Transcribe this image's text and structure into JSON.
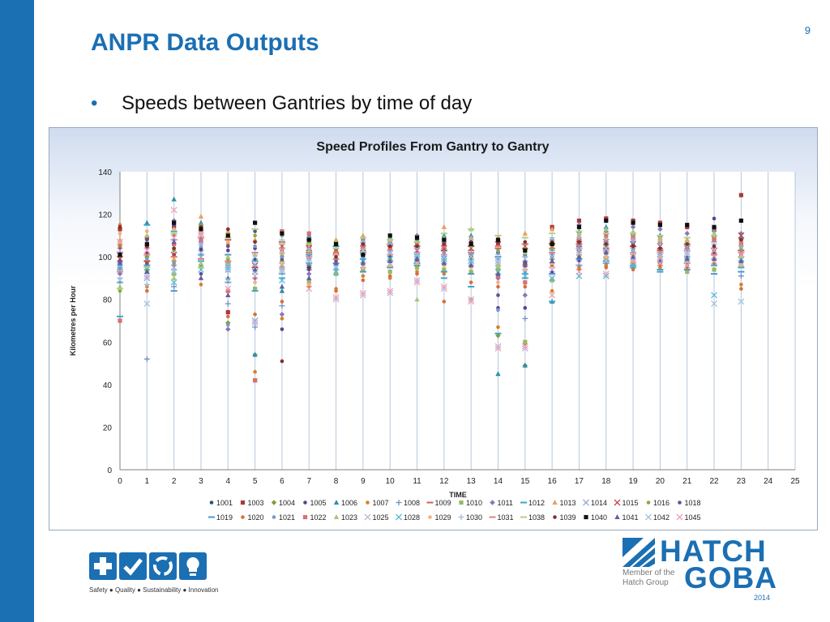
{
  "slide": {
    "page_number": "9",
    "title": "ANPR Data Outputs",
    "bullet_symbol": "•",
    "bullet": "Speeds between Gantries by time of day"
  },
  "footer": {
    "tagline": "Safety ● Quality ● Sustainability ● Innovation",
    "icons": [
      "plus-icon",
      "check-icon",
      "recycle-icon",
      "lightbulb-icon"
    ],
    "logo_line1": "HATCH",
    "logo_line2": "GOBA",
    "member_line1": "Member of the",
    "member_line2": "Hatch Group",
    "year": "2014"
  },
  "colors": {
    "brand": "#1b6fb3"
  },
  "chart_data": {
    "type": "scatter",
    "title": "Speed Profiles From Gantry to Gantry",
    "xlabel": "TIME",
    "ylabel": "Kilometres per Hour",
    "xlim": [
      0,
      25
    ],
    "ylim": [
      0,
      140
    ],
    "x_ticks": [
      0,
      1,
      2,
      3,
      4,
      5,
      6,
      7,
      8,
      9,
      10,
      11,
      12,
      13,
      14,
      15,
      16,
      17,
      18,
      19,
      20,
      21,
      22,
      23,
      24,
      25
    ],
    "y_ticks": [
      0,
      20,
      40,
      60,
      80,
      100,
      120,
      140
    ],
    "grid": "vertical",
    "legend_position": "bottom",
    "series_names": [
      "1001",
      "1003",
      "1004",
      "1005",
      "1006",
      "1007",
      "1008",
      "1009",
      "1010",
      "1011",
      "1012",
      "1013",
      "1014",
      "1015",
      "1016",
      "1018",
      "1019",
      "1020",
      "1021",
      "1022",
      "1023",
      "1025",
      "1028",
      "1029",
      "1030",
      "1031",
      "1038",
      "1039",
      "1040",
      "1041",
      "1042",
      "1045"
    ],
    "series_colors": [
      "#2f4f7f",
      "#a83a3a",
      "#7f9f3f",
      "#5f3f8f",
      "#2f8fa8",
      "#d8802a",
      "#6f8fc8",
      "#c86060",
      "#98b868",
      "#8878b8",
      "#38a8c8",
      "#e8a060",
      "#98a8d8",
      "#c04040",
      "#88a848",
      "#605090",
      "#4898c8",
      "#d87038",
      "#7898c8",
      "#d87070",
      "#a8c878",
      "#c8b0d8",
      "#58b8d8",
      "#f0b080",
      "#a0b8e0",
      "#e08080",
      "#b0d080",
      "#803030",
      "#101010",
      "#6060a0",
      "#a0c0e0",
      "#f0a0b0"
    ],
    "series_markers": [
      "dot",
      "square",
      "diamond",
      "dot",
      "triangle",
      "dot",
      "plus",
      "dash",
      "square",
      "diamond",
      "dash",
      "triangle",
      "x",
      "x",
      "dot",
      "dot",
      "dash",
      "dot",
      "dot",
      "square",
      "triangle",
      "x",
      "x",
      "dot",
      "plus",
      "dash",
      "dash",
      "dot",
      "square",
      "triangle",
      "x",
      "x"
    ],
    "points_by_hour": [
      {
        "x": 0,
        "speeds": [
          97,
          113,
          100,
          104,
          95,
          115,
          94,
          102,
          106,
          92,
          72,
          108,
          96,
          99,
          84,
          98,
          88,
          105,
          101,
          70,
          86,
          103,
          95,
          111,
          90,
          93,
          85,
          114,
          101,
          97,
          89,
          107
        ]
      },
      {
        "x": 1,
        "speeds": [
          97,
          109,
          100,
          102,
          116,
          86,
          52,
          98,
          93,
          104,
          115,
          106,
          90,
          97,
          94,
          108,
          96,
          84,
          99,
          105,
          110,
          91,
          95,
          112,
          87,
          101,
          95,
          105,
          106,
          93,
          78,
          103
        ]
      },
      {
        "x": 2,
        "speeds": [
          104,
          114,
          98,
          101,
          127,
          96,
          86,
          108,
          92,
          117,
          112,
          99,
          95,
          101,
          103,
          115,
          84,
          110,
          97,
          106,
          90,
          109,
          88,
          113,
          94,
          100,
          111,
          104,
          116,
          107,
          93,
          122
        ]
      },
      {
        "x": 3,
        "speeds": [
          103,
          114,
          96,
          104,
          116,
          87,
          95,
          109,
          111,
          107,
          98,
          119,
          100,
          102,
          115,
          92,
          101,
          113,
          105,
          108,
          97,
          110,
          94,
          112,
          106,
          99,
          95,
          114,
          113,
          90,
          102,
          111
        ]
      },
      {
        "x": 4,
        "speeds": [
          96,
          74,
          69,
          103,
          90,
          106,
          78,
          108,
          97,
          66,
          88,
          112,
          94,
          96,
          99,
          105,
          101,
          72,
          68,
          84,
          100,
          89,
          95,
          107,
          93,
          98,
          109,
          113,
          110,
          82,
          96,
          85
        ]
      },
      {
        "x": 5,
        "speeds": [
          99,
          42,
          54,
          104,
          54,
          46,
          67,
          95,
          85,
          90,
          84,
          108,
          70,
          96,
          110,
          112,
          98,
          73,
          105,
          42,
          101,
          69,
          93,
          88,
          96,
          102,
          113,
          107,
          116,
          94,
          100,
          91
        ]
      },
      {
        "x": 6,
        "speeds": [
          103,
          112,
          98,
          66,
          84,
          71,
          77,
          107,
          95,
          73,
          90,
          101,
          96,
          105,
          110,
          99,
          92,
          79,
          100,
          112,
          102,
          94,
          89,
          97,
          108,
          104,
          106,
          51,
          111,
          86,
          93,
          103
        ]
      },
      {
        "x": 7,
        "speeds": [
          99,
          106,
          100,
          96,
          110,
          89,
          108,
          102,
          88,
          92,
          97,
          105,
          95,
          104,
          107,
          94,
          101,
          86,
          109,
          111,
          103,
          98,
          96,
          87,
          104,
          100,
          106,
          95,
          108,
          90,
          99,
          85
        ]
      },
      {
        "x": 8,
        "speeds": [
          103,
          102,
          99,
          107,
          95,
          85,
          104,
          101,
          92,
          106,
          97,
          108,
          100,
          103,
          96,
          98,
          105,
          84,
          94,
          102,
          107,
          80,
          93,
          101,
          96,
          99,
          104,
          100,
          106,
          97,
          95,
          81
        ]
      },
      {
        "x": 9,
        "speeds": [
          105,
          103,
          97,
          100,
          107,
          91,
          104,
          102,
          94,
          108,
          99,
          110,
          96,
          104,
          106,
          101,
          93,
          89,
          98,
          105,
          103,
          82,
          100,
          95,
          107,
          102,
          109,
          106,
          101,
          97,
          103,
          83
        ]
      },
      {
        "x": 10,
        "speeds": [
          105,
          104,
          99,
          101,
          109,
          90,
          103,
          106,
          93,
          107,
          98,
          108,
          97,
          104,
          105,
          100,
          95,
          91,
          102,
          104,
          108,
          83,
          99,
          96,
          106,
          101,
          108,
          105,
          110,
          98,
          102,
          84
        ]
      },
      {
        "x": 11,
        "speeds": [
          104,
          106,
          100,
          102,
          108,
          93,
          101,
          105,
          95,
          110,
          97,
          109,
          99,
          103,
          107,
          98,
          96,
          92,
          101,
          106,
          80,
          89,
          100,
          97,
          104,
          102,
          107,
          105,
          109,
          99,
          101,
          88
        ]
      },
      {
        "x": 12,
        "speeds": [
          105,
          106,
          99,
          97,
          110,
          92,
          104,
          103,
          94,
          108,
          90,
          114,
          98,
          104,
          106,
          100,
          93,
          79,
          102,
          105,
          109,
          85,
          99,
          96,
          107,
          101,
          111,
          106,
          108,
          97,
          100,
          86
        ]
      },
      {
        "x": 13,
        "speeds": [
          106,
          101,
          99,
          96,
          110,
          80,
          103,
          105,
          93,
          107,
          86,
          109,
          97,
          104,
          105,
          100,
          92,
          88,
          101,
          106,
          113,
          80,
          98,
          95,
          108,
          102,
          113,
          107,
          106,
          96,
          100,
          79
        ]
      },
      {
        "x": 14,
        "speeds": [
          102,
          106,
          63,
          76,
          45,
          67,
          99,
          104,
          94,
          90,
          64,
          109,
          97,
          106,
          103,
          82,
          100,
          86,
          75,
          91,
          96,
          58,
          93,
          88,
          101,
          105,
          110,
          107,
          108,
          92,
          98,
          57
        ]
      },
      {
        "x": 15,
        "speeds": [
          101,
          97,
          49,
          76,
          49,
          59,
          71,
          106,
          60,
          82,
          92,
          111,
          95,
          105,
          104,
          98,
          90,
          86,
          93,
          88,
          102,
          57,
          91,
          94,
          100,
          106,
          109,
          107,
          103,
          96,
          99,
          58
        ]
      },
      {
        "x": 16,
        "speeds": [
          107,
          114,
          99,
          93,
          79,
          84,
          103,
          106,
          89,
          108,
          79,
          113,
          96,
          105,
          104,
          100,
          92,
          96,
          101,
          106,
          108,
          94,
          90,
          97,
          109,
          102,
          111,
          107,
          106,
          98,
          100,
          82
        ]
      },
      {
        "x": 17,
        "speeds": [
          105,
          117,
          104,
          98,
          112,
          95,
          108,
          106,
          100,
          115,
          96,
          110,
          102,
          106,
          107,
          103,
          99,
          94,
          105,
          108,
          111,
          97,
          91,
          101,
          109,
          104,
          112,
          107,
          114,
          100,
          103,
          93
        ]
      },
      {
        "x": 18,
        "speeds": [
          108,
          118,
          102,
          100,
          114,
          96,
          107,
          104,
          99,
          112,
          98,
          109,
          101,
          107,
          105,
          104,
          97,
          95,
          106,
          110,
          113,
          98,
          91,
          100,
          108,
          103,
          111,
          106,
          117,
          102,
          104,
          92
        ]
      },
      {
        "x": 19,
        "speeds": [
          106,
          117,
          101,
          99,
          111,
          97,
          108,
          105,
          98,
          114,
          96,
          110,
          100,
          106,
          104,
          103,
          95,
          94,
          107,
          109,
          112,
          99,
          96,
          101,
          108,
          102,
          111,
          105,
          116,
          100,
          103,
          98
        ]
      },
      {
        "x": 20,
        "speeds": [
          104,
          116,
          100,
          98,
          110,
          95,
          106,
          103,
          97,
          113,
          94,
          109,
          99,
          105,
          102,
          101,
          93,
          96,
          104,
          107,
          108,
          100,
          97,
          99,
          106,
          102,
          110,
          104,
          115,
          98,
          101,
          97
        ]
      },
      {
        "x": 21,
        "speeds": [
          105,
          114,
          99,
          100,
          108,
          96,
          104,
          106,
          93,
          111,
          97,
          108,
          98,
          104,
          103,
          100,
          94,
          95,
          103,
          106,
          107,
          101,
          99,
          98,
          105,
          103,
          109,
          106,
          115,
          99,
          102,
          96
        ]
      },
      {
        "x": 22,
        "speeds": [
          103,
          113,
          101,
          118,
          110,
          99,
          107,
          104,
          94,
          112,
          96,
          109,
          100,
          103,
          105,
          102,
          92,
          97,
          104,
          108,
          111,
          98,
          82,
          100,
          106,
          101,
          110,
          105,
          114,
          99,
          78,
          103
        ]
      },
      {
        "x": 23,
        "speeds": [
          98,
          129,
          100,
          105,
          109,
          87,
          91,
          103,
          96,
          111,
          95,
          108,
          99,
          110,
          104,
          101,
          93,
          85,
          102,
          106,
          100,
          97,
          99,
          96,
          105,
          102,
          100,
          108,
          117,
          98,
          79,
          101
        ]
      }
    ]
  }
}
